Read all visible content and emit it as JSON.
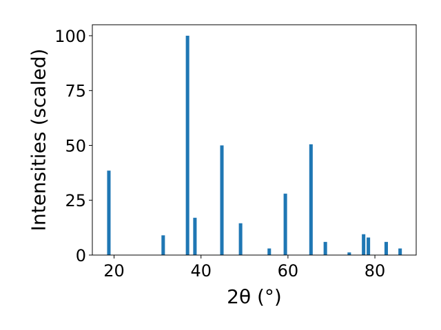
{
  "chart_data": {
    "type": "bar",
    "xlabel": "2θ (°)",
    "ylabel": "Intensities (scaled)",
    "xlim": [
      15,
      89.5
    ],
    "ylim": [
      0,
      105
    ],
    "x_ticks": [
      20,
      40,
      60,
      80
    ],
    "y_ticks": [
      0,
      25,
      50,
      75,
      100
    ],
    "grid": false,
    "bar_color": "#1f77b4",
    "bar_width": 0.8,
    "x": [
      18.8,
      31.3,
      36.9,
      38.6,
      44.8,
      49.1,
      55.7,
      59.4,
      65.3,
      68.6,
      74.1,
      77.4,
      78.5,
      82.6,
      85.8
    ],
    "values": [
      38.5,
      9.0,
      100,
      17.0,
      50,
      14.5,
      3.0,
      28,
      50.5,
      6.0,
      1.2,
      9.5,
      8.0,
      6.0,
      3.0
    ]
  }
}
